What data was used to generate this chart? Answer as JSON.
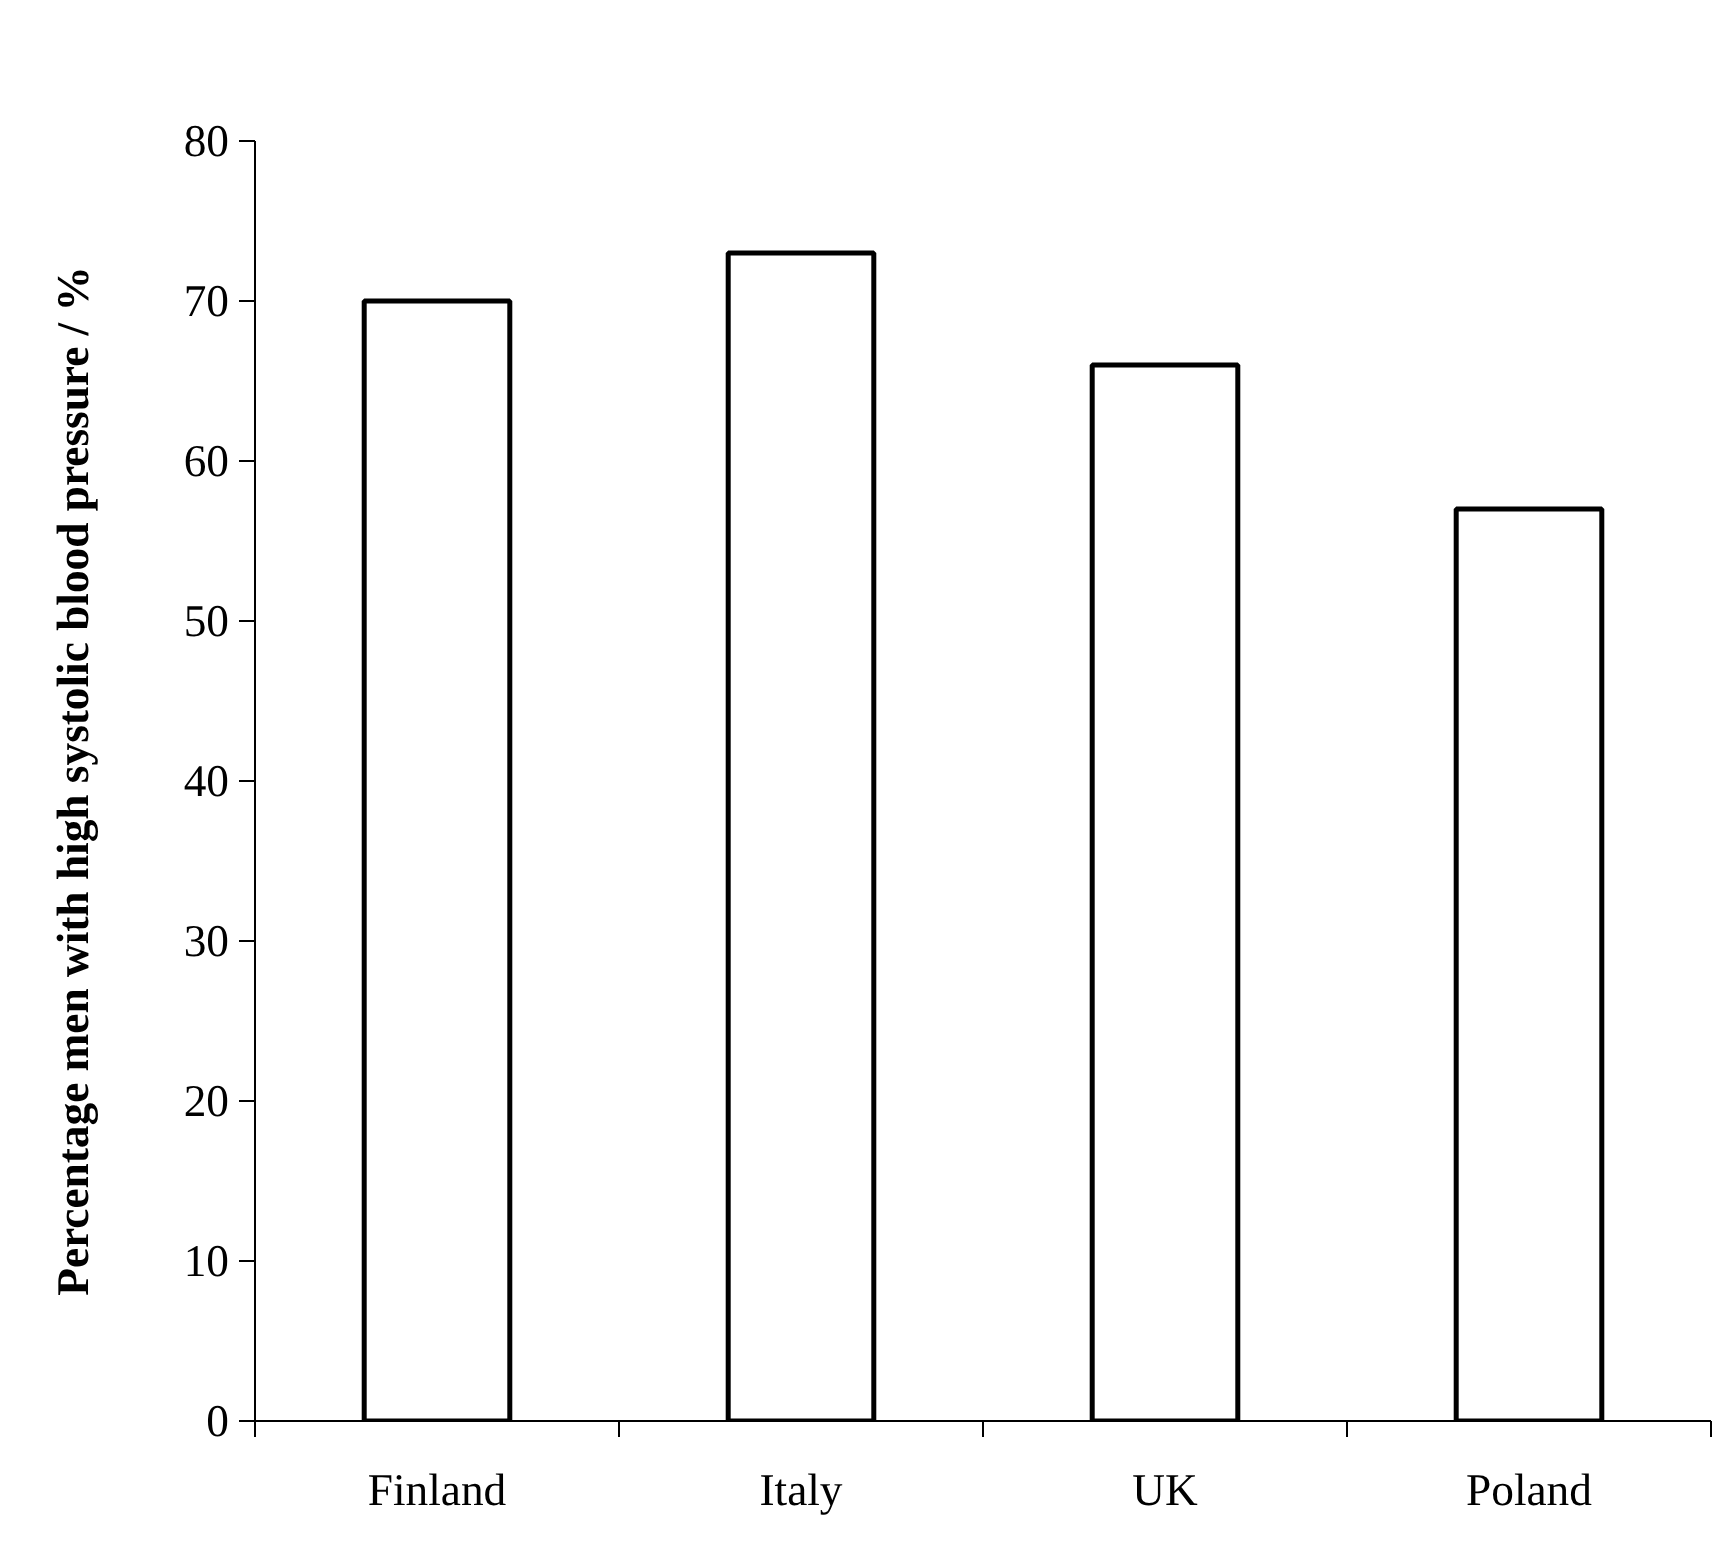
{
  "chart_data": {
    "type": "bar",
    "ylabel": "Percentage men with high systolic blood pressure / %",
    "categories": [
      "Finland",
      "Italy",
      "UK",
      "Poland"
    ],
    "values": [
      70,
      73,
      66,
      57
    ],
    "color": "#ffffff",
    "ylim": [
      0,
      80
    ],
    "yticks": [
      0,
      10,
      20,
      30,
      40,
      50,
      60,
      70,
      80
    ],
    "grid": false
  }
}
